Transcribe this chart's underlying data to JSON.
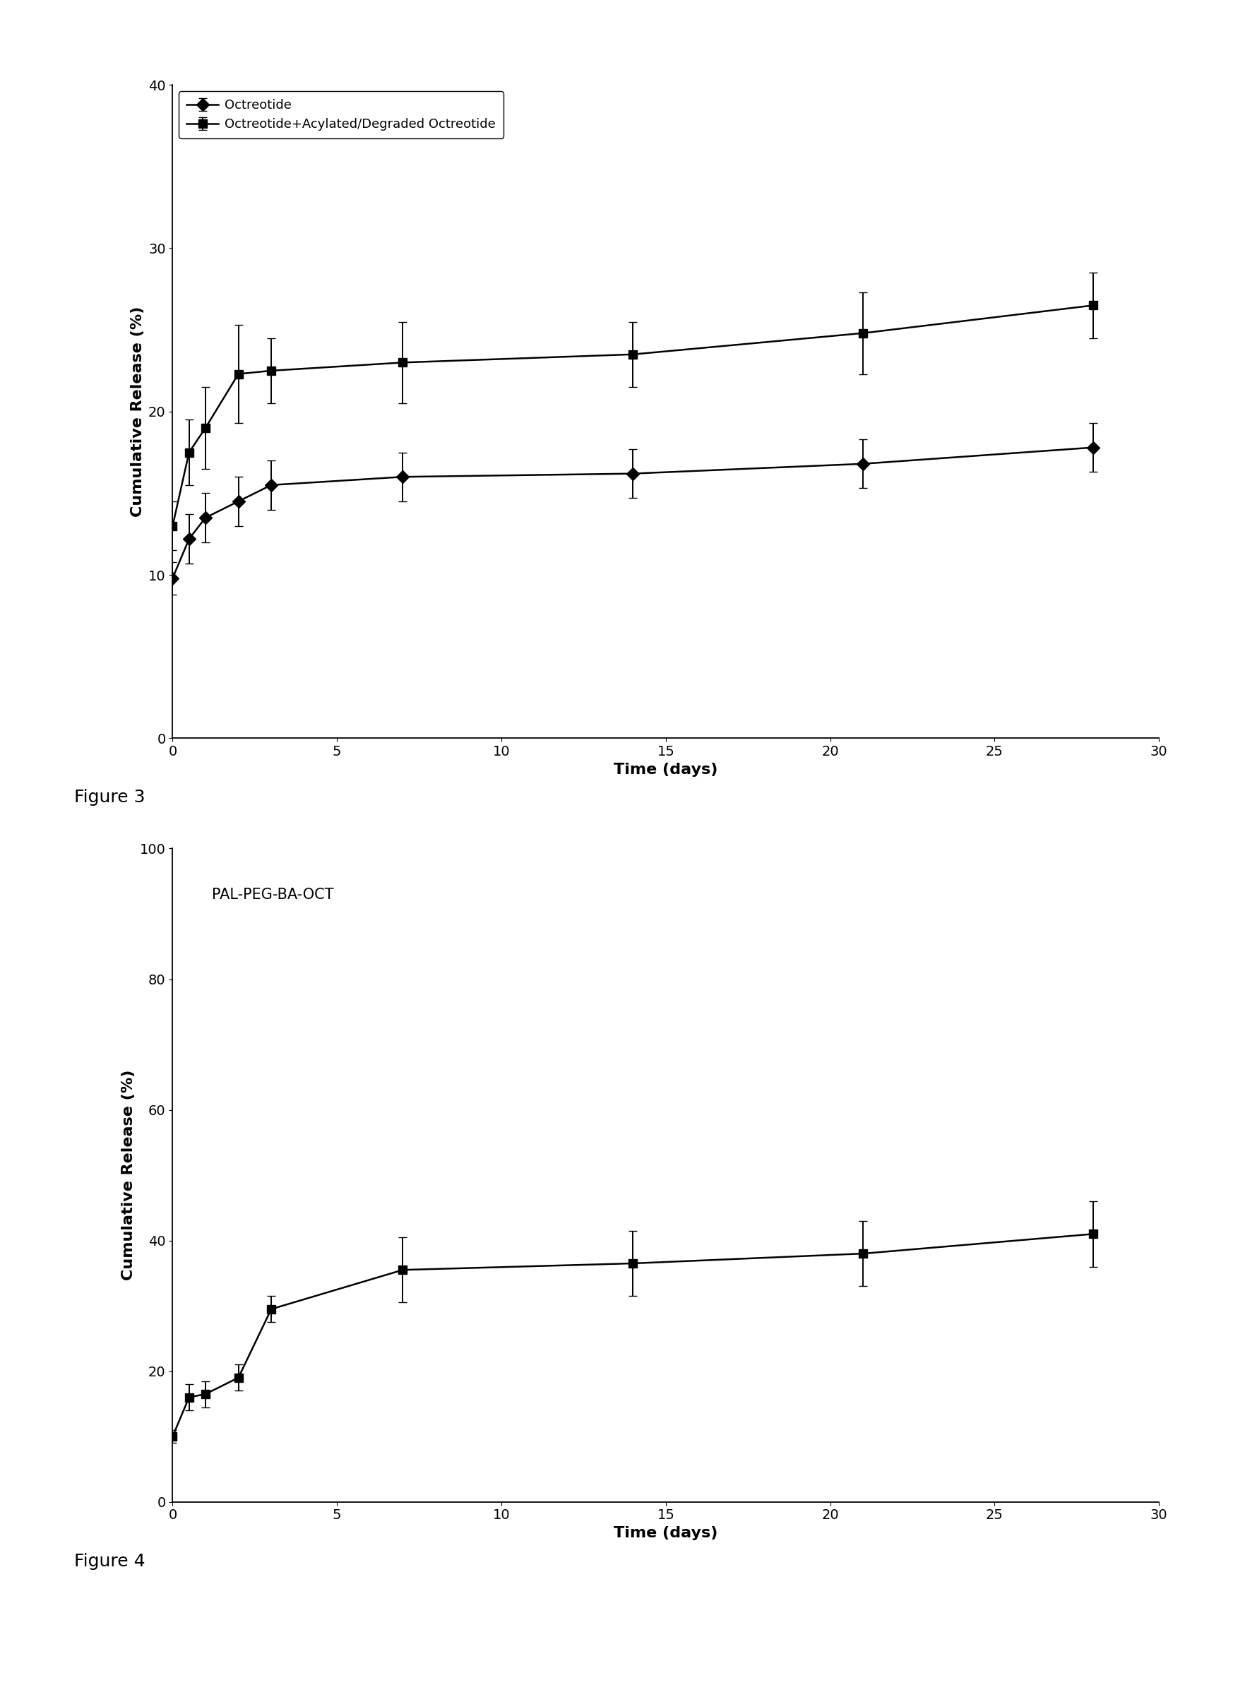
{
  "fig3": {
    "series1": {
      "label": "Octreotide",
      "x": [
        0,
        0.5,
        1,
        2,
        3,
        7,
        14,
        21,
        28
      ],
      "y": [
        9.8,
        12.2,
        13.5,
        14.5,
        15.5,
        16.0,
        16.2,
        16.8,
        17.8
      ],
      "yerr": [
        1.0,
        1.5,
        1.5,
        1.5,
        1.5,
        1.5,
        1.5,
        1.5,
        1.5
      ],
      "marker": "D",
      "color": "#000000"
    },
    "series2": {
      "label": "Octreotide+Acylated/Degraded Octreotide",
      "x": [
        0,
        0.5,
        1,
        2,
        3,
        7,
        14,
        21,
        28
      ],
      "y": [
        13.0,
        17.5,
        19.0,
        22.3,
        22.5,
        23.0,
        23.5,
        24.8,
        26.5
      ],
      "yerr": [
        1.5,
        2.0,
        2.5,
        3.0,
        2.0,
        2.5,
        2.0,
        2.5,
        2.0
      ],
      "marker": "s",
      "color": "#000000"
    },
    "xlabel": "Time (days)",
    "ylabel": "Cumulative Release (%)",
    "xlim": [
      0,
      30
    ],
    "ylim": [
      0,
      40
    ],
    "xticks": [
      0,
      5,
      10,
      15,
      20,
      25,
      30
    ],
    "yticks": [
      0,
      10,
      20,
      30,
      40
    ],
    "figure_label": "Figure 3"
  },
  "fig4": {
    "series1": {
      "label": "PAL-PEG-BA-OCT",
      "x": [
        0,
        0.5,
        1,
        2,
        3,
        7,
        14,
        21,
        28
      ],
      "y": [
        10.0,
        16.0,
        16.5,
        19.0,
        29.5,
        35.5,
        36.5,
        38.0,
        41.0
      ],
      "yerr": [
        1.0,
        2.0,
        2.0,
        2.0,
        2.0,
        5.0,
        5.0,
        5.0,
        5.0
      ],
      "marker": "s",
      "color": "#000000"
    },
    "annotation": "PAL-PEG-BA-OCT",
    "xlabel": "Time (days)",
    "ylabel": "Cumulative Release (%)",
    "xlim": [
      0,
      30
    ],
    "ylim": [
      0,
      100
    ],
    "xticks": [
      0,
      5,
      10,
      15,
      20,
      25,
      30
    ],
    "yticks": [
      0,
      20,
      40,
      60,
      80,
      100
    ],
    "figure_label": "Figure 4"
  },
  "background_color": "#ffffff",
  "line_color": "#000000",
  "linewidth": 1.8,
  "markersize": 9,
  "capsize": 4,
  "elinewidth": 1.4,
  "font_size": 15,
  "label_font_size": 16,
  "tick_font_size": 14,
  "legend_font_size": 13,
  "figure_label_font_size": 18
}
